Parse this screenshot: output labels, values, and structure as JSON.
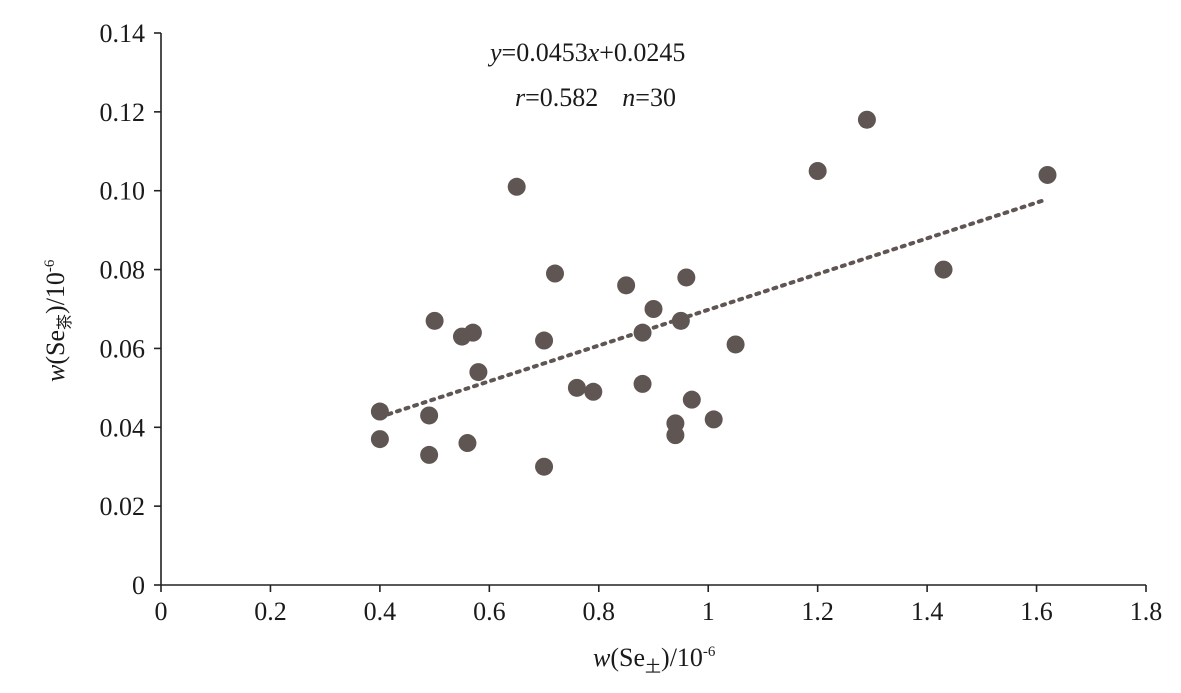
{
  "chart_data": {
    "type": "scatter",
    "title": "",
    "xlabel": {
      "prefix": "w",
      "open": "(Se",
      "sub": "土",
      "close": ")/10",
      "exp": "-6"
    },
    "ylabel": {
      "prefix": "w",
      "open": "(Se",
      "sub": "茶",
      "close": ")/10",
      "exp": "-6"
    },
    "xlim": [
      0,
      1.8
    ],
    "ylim": [
      0,
      0.14
    ],
    "x_ticks": [
      "0",
      "0.2",
      "0.4",
      "0.6",
      "0.8",
      "1",
      "1.2",
      "1.4",
      "1.6",
      "1.8"
    ],
    "x_tick_values": [
      0,
      0.2,
      0.4,
      0.6,
      0.8,
      1.0,
      1.2,
      1.4,
      1.6,
      1.8
    ],
    "y_ticks": [
      "0",
      "0.02",
      "0.04",
      "0.06",
      "0.08",
      "0.10",
      "0.12",
      "0.14"
    ],
    "y_tick_values": [
      0,
      0.02,
      0.04,
      0.06,
      0.08,
      0.1,
      0.12,
      0.14
    ],
    "grid": false,
    "legend": "none",
    "colors": {
      "points": "#5f5653",
      "trendline": "#5f5653",
      "axis": "#222222"
    },
    "annotations": {
      "equation": {
        "y": "y",
        "eq1": "=0.0453",
        "x": "x",
        "eq2": "+0.0245"
      },
      "stats": {
        "r": "r",
        "r_val": "=0.582",
        "n": "n",
        "n_val": "=30"
      }
    },
    "trendline": {
      "slope": 0.0453,
      "intercept": 0.0245,
      "x_start": 0.4,
      "x_end": 1.61
    },
    "points": [
      {
        "x": 0.4,
        "y": 0.044
      },
      {
        "x": 0.4,
        "y": 0.037
      },
      {
        "x": 0.49,
        "y": 0.043
      },
      {
        "x": 0.49,
        "y": 0.033
      },
      {
        "x": 0.5,
        "y": 0.067
      },
      {
        "x": 0.55,
        "y": 0.063
      },
      {
        "x": 0.56,
        "y": 0.036
      },
      {
        "x": 0.57,
        "y": 0.064
      },
      {
        "x": 0.58,
        "y": 0.054
      },
      {
        "x": 0.65,
        "y": 0.101
      },
      {
        "x": 0.7,
        "y": 0.062
      },
      {
        "x": 0.7,
        "y": 0.03
      },
      {
        "x": 0.72,
        "y": 0.079
      },
      {
        "x": 0.76,
        "y": 0.05
      },
      {
        "x": 0.79,
        "y": 0.049
      },
      {
        "x": 0.85,
        "y": 0.076
      },
      {
        "x": 0.88,
        "y": 0.064
      },
      {
        "x": 0.88,
        "y": 0.051
      },
      {
        "x": 0.9,
        "y": 0.07
      },
      {
        "x": 0.94,
        "y": 0.041
      },
      {
        "x": 0.94,
        "y": 0.038
      },
      {
        "x": 0.95,
        "y": 0.067
      },
      {
        "x": 0.96,
        "y": 0.078
      },
      {
        "x": 0.97,
        "y": 0.047
      },
      {
        "x": 1.01,
        "y": 0.042
      },
      {
        "x": 1.05,
        "y": 0.061
      },
      {
        "x": 1.2,
        "y": 0.105
      },
      {
        "x": 1.29,
        "y": 0.118
      },
      {
        "x": 1.43,
        "y": 0.08
      },
      {
        "x": 1.62,
        "y": 0.104
      }
    ]
  }
}
